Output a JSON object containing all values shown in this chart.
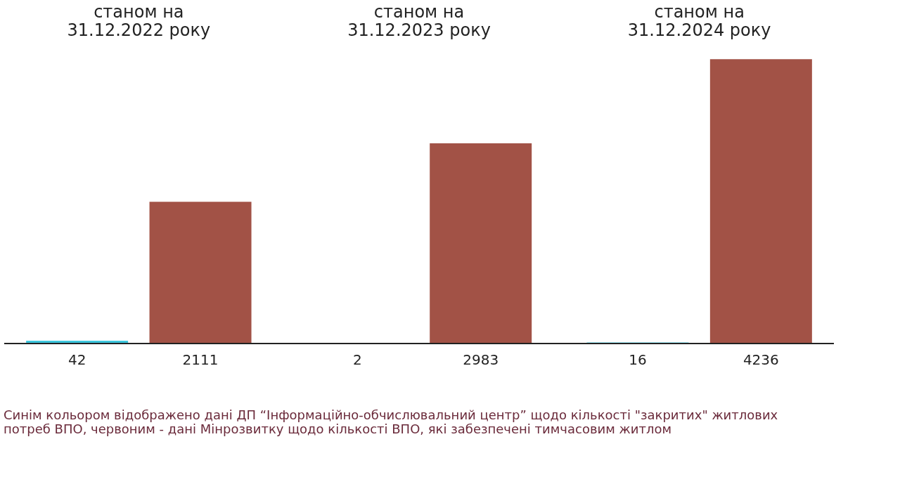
{
  "chart_data": {
    "type": "bar",
    "categories": [
      "станом на\n31.12.2022 року",
      "станом на\n31.12.2023 року",
      "станом на\n31.12.2024 року"
    ],
    "series": [
      {
        "color": "#3ec6dd",
        "values": [
          42,
          2,
          16
        ]
      },
      {
        "color": "#a25246",
        "values": [
          2111,
          2983,
          4236
        ]
      }
    ],
    "data_labels": true,
    "tick_labels": "x",
    "grid": false,
    "legend": false,
    "annotations": [
      "Синім кольором відображено дані ДП “Інформаційно-обчислювальний центр” щодо кількості \"закритих\" житлових\nпотреб ВПО, червоним - дані Мінрозвитку щодо кількості ВПО, які забезпечені тимчасовим житлом"
    ]
  }
}
